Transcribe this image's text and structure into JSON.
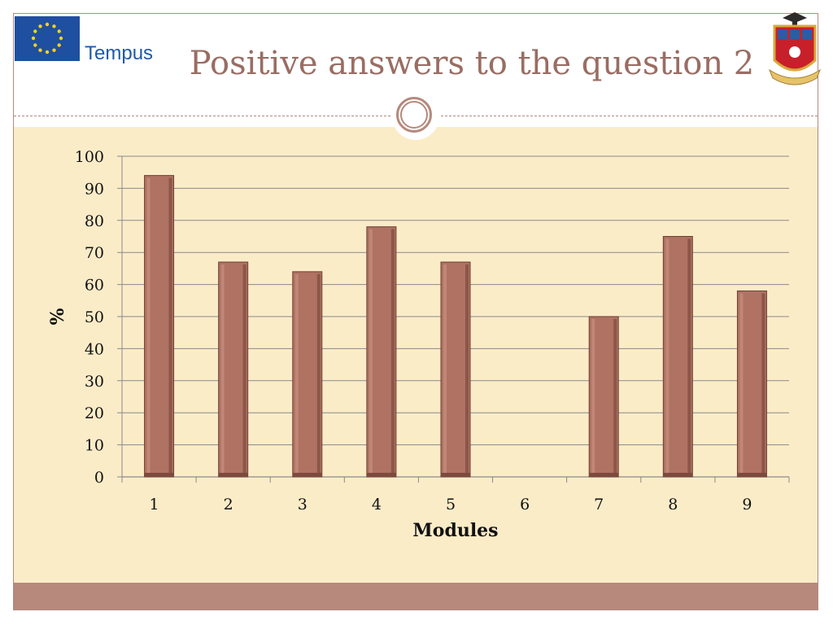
{
  "header": {
    "title": "Positive answers to the question 2",
    "logo_text": "Tempus"
  },
  "colors": {
    "bar": "#b07262",
    "background": "#fbecc8",
    "accent": "#b6897c",
    "title": "#9a6d63"
  },
  "chart_data": {
    "type": "bar",
    "title": "",
    "xlabel": "Modules",
    "ylabel": "%",
    "categories": [
      "1",
      "2",
      "3",
      "4",
      "5",
      "6",
      "7",
      "8",
      "9"
    ],
    "values": [
      94,
      67,
      64,
      78,
      67,
      null,
      50,
      75,
      58
    ],
    "ylim": [
      0,
      100
    ],
    "yticks": [
      "0",
      "10",
      "20",
      "30",
      "40",
      "50",
      "60",
      "70",
      "80",
      "90",
      "100"
    ],
    "grid": true,
    "legend": "none"
  }
}
